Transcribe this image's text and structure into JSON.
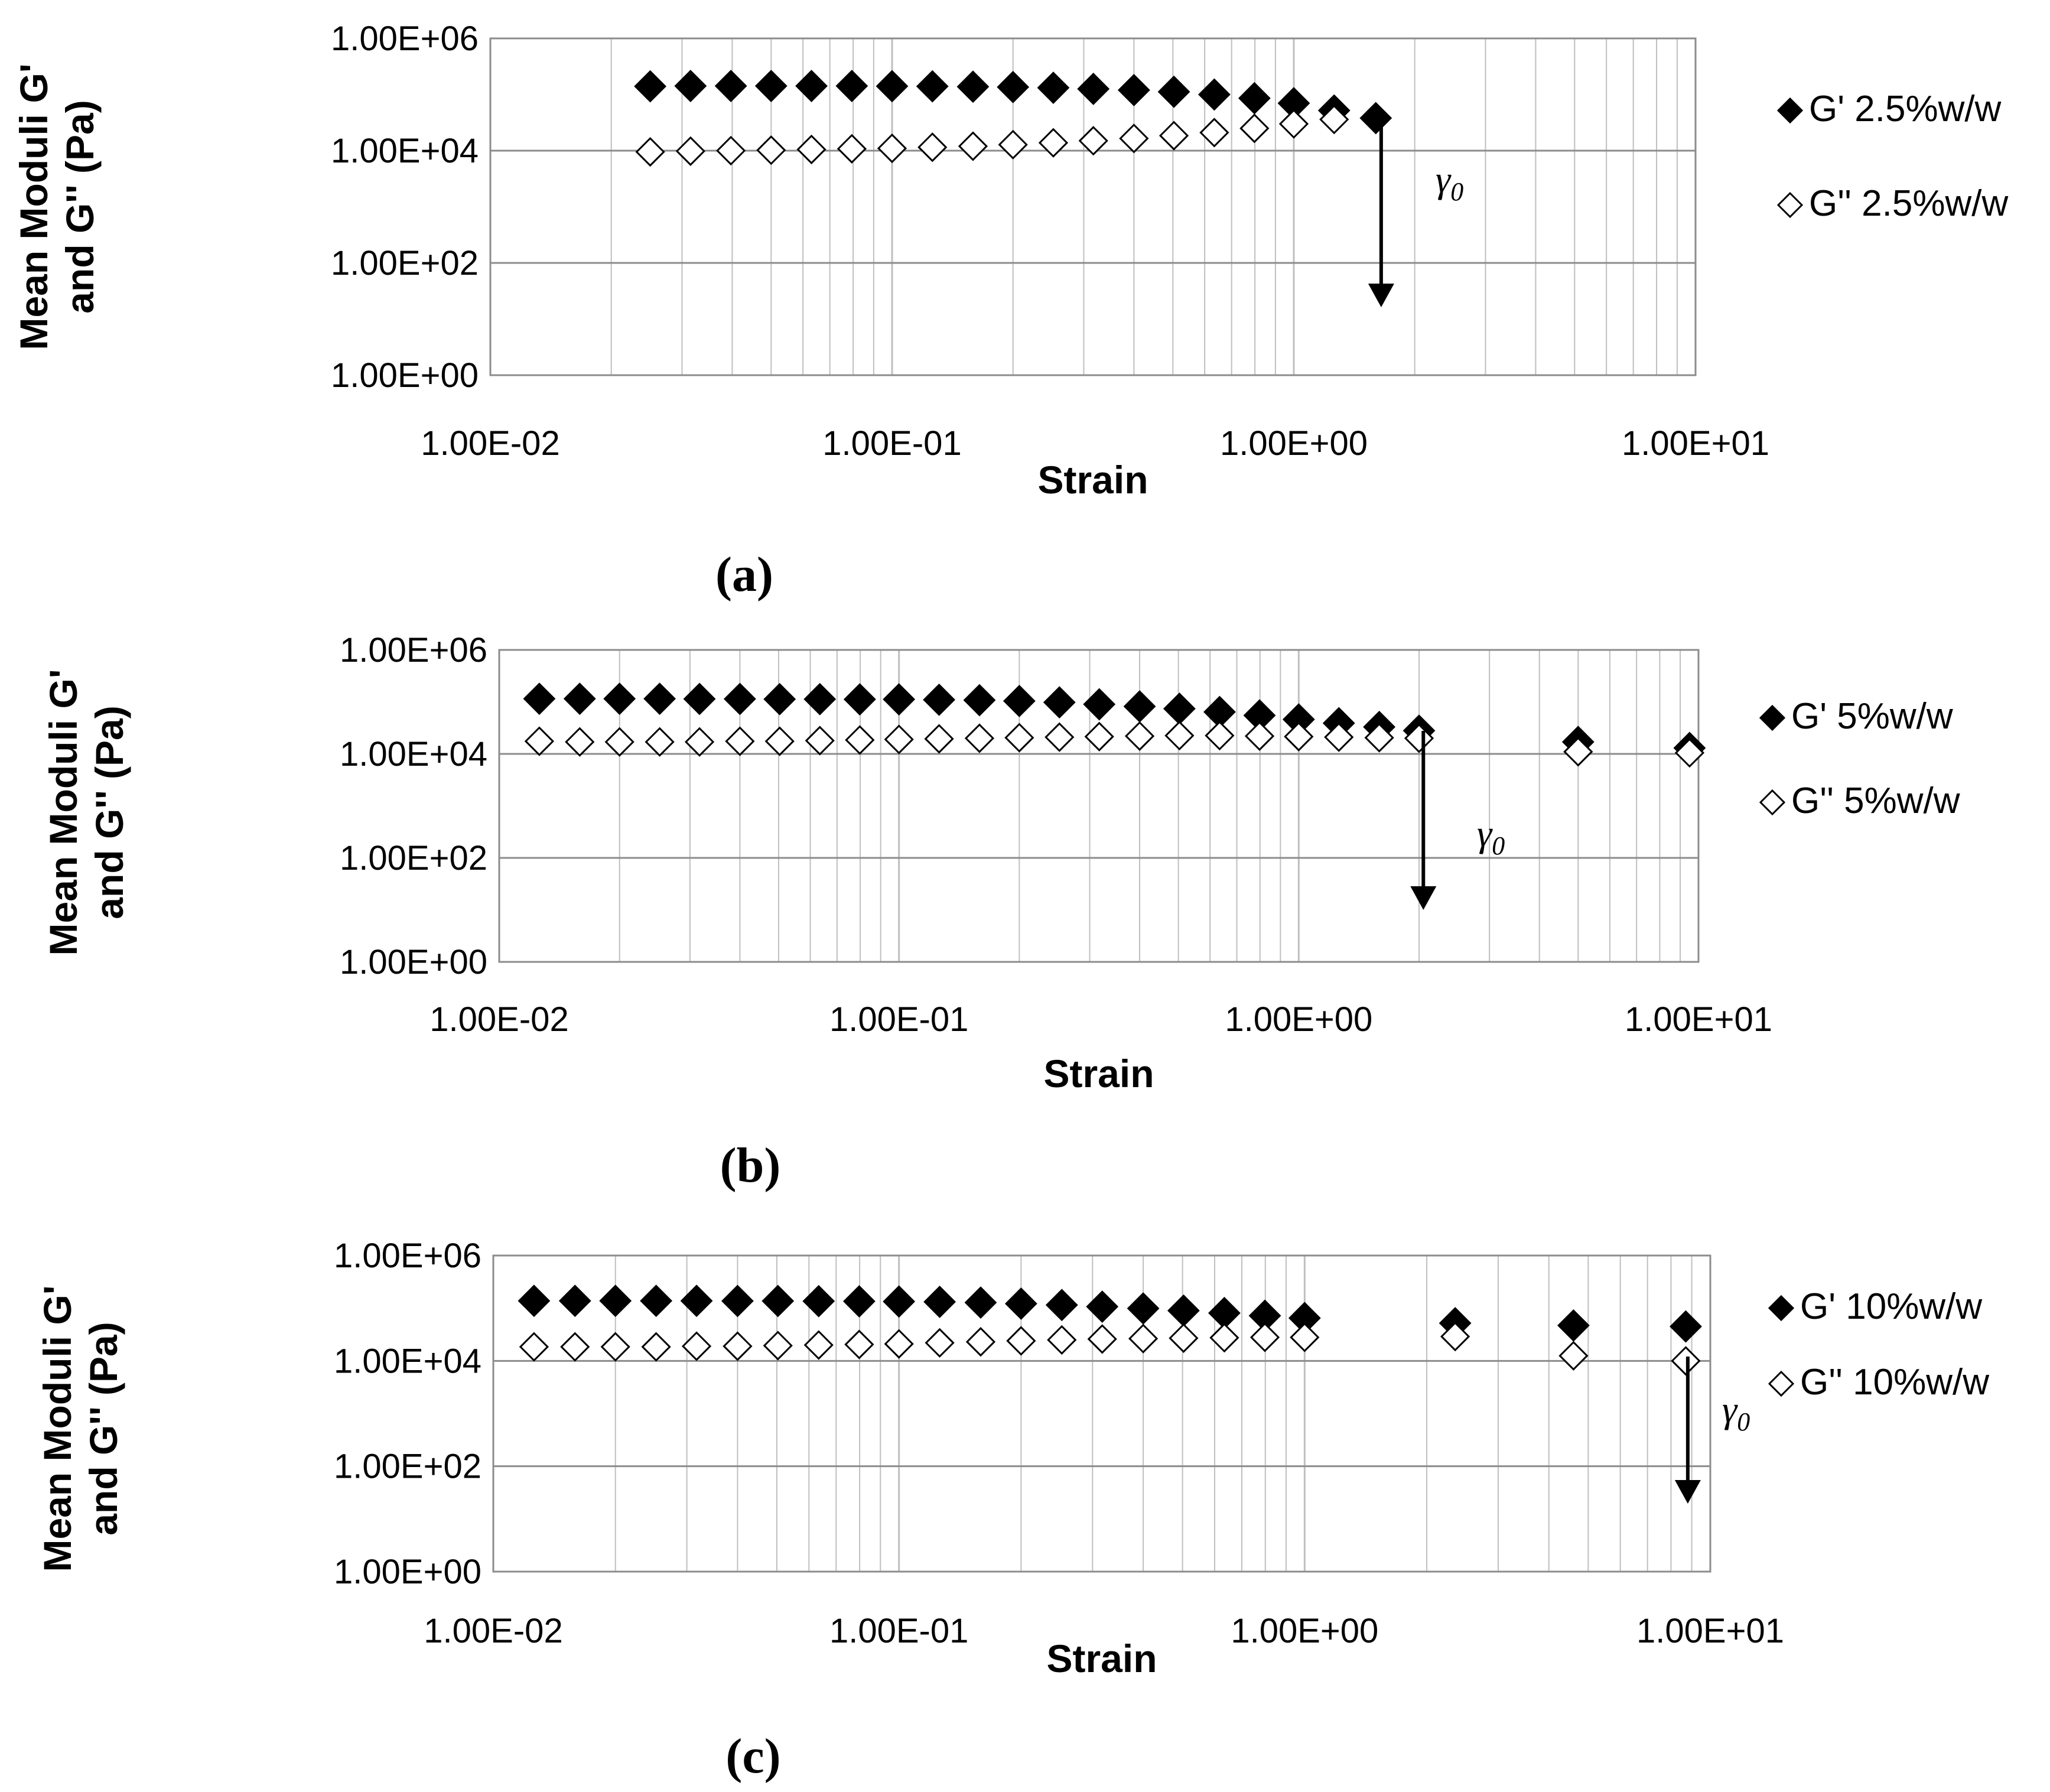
{
  "figure": {
    "panel_labels": [
      "(a)",
      "(b)",
      "(c)"
    ],
    "colors": {
      "marker_filled": "#000000",
      "marker_open_fill": "#ffffff",
      "marker_stroke": "#000000",
      "gridline": "#bfbfbf",
      "plot_border": "#8c8c8c",
      "arrow": "#000000"
    }
  },
  "chart_data": [
    {
      "type": "scatter",
      "panel": "(a)",
      "title": "",
      "xlabel": "Strain",
      "ylabel": "Mean Moduli G' and G'' (Pa)",
      "ylabel_lines": [
        "Mean Moduli G'",
        "and G'' (Pa)"
      ],
      "xscale": "log",
      "yscale": "log",
      "xlim": [
        0.01,
        10
      ],
      "ylim": [
        1,
        1000000
      ],
      "xticks": [
        0.01,
        0.1,
        1,
        10
      ],
      "xtick_labels": [
        "1.00E-02",
        "1.00E-01",
        "1.00E+00",
        "1.00E+01"
      ],
      "yticks": [
        1,
        100,
        10000,
        1000000
      ],
      "ytick_labels": [
        "1.00E+00",
        "1.00E+02",
        "1.00E+04",
        "1.00E+06"
      ],
      "grid": true,
      "legend_position": "right",
      "annotation": {
        "text": "γ",
        "subscript": "0",
        "x": 1.65
      },
      "series": [
        {
          "name": "G' 2.5%w/w",
          "marker": "filled-diamond",
          "x": [
            0.025,
            0.0315,
            0.0397,
            0.05,
            0.063,
            0.0794,
            0.1,
            0.126,
            0.159,
            0.2,
            0.252,
            0.317,
            0.4,
            0.503,
            0.634,
            0.798,
            1.0,
            1.26,
            1.6
          ],
          "y": [
            140000,
            142000,
            142000,
            142000,
            142000,
            142000,
            141000,
            140000,
            138000,
            136000,
            132000,
            126000,
            120000,
            112000,
            100000,
            86000,
            70000,
            52000,
            38000
          ]
        },
        {
          "name": "G'' 2.5%w/w",
          "marker": "open-diamond",
          "x": [
            0.025,
            0.0315,
            0.0397,
            0.05,
            0.063,
            0.0794,
            0.1,
            0.126,
            0.159,
            0.2,
            0.252,
            0.317,
            0.4,
            0.503,
            0.634,
            0.798,
            1.0,
            1.26
          ],
          "y": [
            9500,
            9800,
            10000,
            10200,
            10500,
            10800,
            11000,
            11500,
            12000,
            12800,
            13800,
            15000,
            16500,
            18500,
            21000,
            25000,
            30000,
            36000
          ]
        }
      ]
    },
    {
      "type": "scatter",
      "panel": "(b)",
      "title": "",
      "xlabel": "Strain",
      "ylabel": "Mean Moduli G' and G'' (Pa)",
      "ylabel_lines": [
        "Mean Moduli G'",
        "and G'' (Pa)"
      ],
      "xscale": "log",
      "yscale": "log",
      "xlim": [
        0.01,
        10
      ],
      "ylim": [
        1,
        1000000
      ],
      "xticks": [
        0.01,
        0.1,
        1,
        10
      ],
      "xtick_labels": [
        "1.00E-02",
        "1.00E-01",
        "1.00E+00",
        "1.00E+01"
      ],
      "yticks": [
        1,
        100,
        10000,
        1000000
      ],
      "ytick_labels": [
        "1.00E+00",
        "1.00E+02",
        "1.00E+04",
        "1.00E+06"
      ],
      "grid": true,
      "legend_position": "right",
      "annotation": {
        "text": "γ",
        "subscript": "0",
        "x": 2.05
      },
      "series": [
        {
          "name": "G' 5%w/w",
          "marker": "filled-diamond",
          "x": [
            0.0126,
            0.0159,
            0.02,
            0.0252,
            0.0317,
            0.04,
            0.0503,
            0.0634,
            0.0798,
            0.1,
            0.126,
            0.159,
            0.2,
            0.252,
            0.317,
            0.4,
            0.503,
            0.634,
            0.798,
            1.0,
            1.26,
            1.59,
            2.0,
            5.0,
            9.5
          ],
          "y": [
            115000,
            115000,
            115000,
            115000,
            114000,
            114000,
            113000,
            113000,
            112000,
            112000,
            110000,
            108000,
            104000,
            98000,
            90000,
            82000,
            74000,
            64000,
            55000,
            46000,
            39000,
            33000,
            28000,
            17000,
            13000
          ]
        },
        {
          "name": "G'' 5%w/w",
          "marker": "open-diamond",
          "x": [
            0.0126,
            0.0159,
            0.02,
            0.0252,
            0.0317,
            0.04,
            0.0503,
            0.0634,
            0.0798,
            0.1,
            0.126,
            0.159,
            0.2,
            0.252,
            0.317,
            0.4,
            0.503,
            0.634,
            0.798,
            1.0,
            1.26,
            1.59,
            2.0,
            5.0,
            9.5
          ],
          "y": [
            17500,
            17000,
            17000,
            17000,
            17000,
            17500,
            17500,
            18000,
            18500,
            19000,
            19500,
            20000,
            20500,
            21000,
            21500,
            22000,
            22500,
            22500,
            22000,
            21500,
            21000,
            20500,
            20000,
            11000,
            10500
          ]
        }
      ]
    },
    {
      "type": "scatter",
      "panel": "(c)",
      "title": "",
      "xlabel": "Strain",
      "ylabel": "Mean Moduli G' and G'' (Pa)",
      "ylabel_lines": [
        "Mean Moduli G'",
        "and G'' (Pa)"
      ],
      "xscale": "log",
      "yscale": "log",
      "xlim": [
        0.01,
        10
      ],
      "ylim": [
        1,
        1000000
      ],
      "xticks": [
        0.01,
        0.1,
        1,
        10
      ],
      "xtick_labels": [
        "1.00E-02",
        "1.00E-01",
        "1.00E+00",
        "1.00E+01"
      ],
      "yticks": [
        1,
        100,
        10000,
        1000000
      ],
      "ytick_labels": [
        "1.00E+00",
        "1.00E+02",
        "1.00E+04",
        "1.00E+06"
      ],
      "grid": true,
      "legend_position": "right",
      "annotation": {
        "text": "γ",
        "subscript": "0",
        "x": 8.8
      },
      "series": [
        {
          "name": "G' 10%w/w",
          "marker": "filled-diamond",
          "x": [
            0.0126,
            0.0159,
            0.02,
            0.0252,
            0.0317,
            0.04,
            0.0503,
            0.0634,
            0.0798,
            0.1,
            0.126,
            0.159,
            0.2,
            0.252,
            0.317,
            0.4,
            0.503,
            0.634,
            0.798,
            1.0,
            2.35,
            4.6,
            8.7
          ],
          "y": [
            138000,
            138000,
            138000,
            138000,
            138000,
            137000,
            137000,
            136000,
            135000,
            134000,
            132000,
            128000,
            122000,
            115000,
            107000,
            99000,
            90000,
            81000,
            72000,
            65000,
            52000,
            47000,
            45000
          ]
        },
        {
          "name": "G'' 10%w/w",
          "marker": "open-diamond",
          "x": [
            0.0126,
            0.0159,
            0.02,
            0.0252,
            0.0317,
            0.04,
            0.0503,
            0.0634,
            0.0798,
            0.1,
            0.126,
            0.159,
            0.2,
            0.252,
            0.317,
            0.4,
            0.503,
            0.634,
            0.798,
            1.0,
            2.35,
            4.6,
            8.7
          ],
          "y": [
            18500,
            18500,
            18500,
            18500,
            19000,
            19000,
            19500,
            20000,
            20500,
            21000,
            22000,
            23000,
            24000,
            25000,
            26000,
            26500,
            27000,
            27500,
            28000,
            28000,
            29000,
            12500,
            10000
          ]
        }
      ]
    }
  ]
}
